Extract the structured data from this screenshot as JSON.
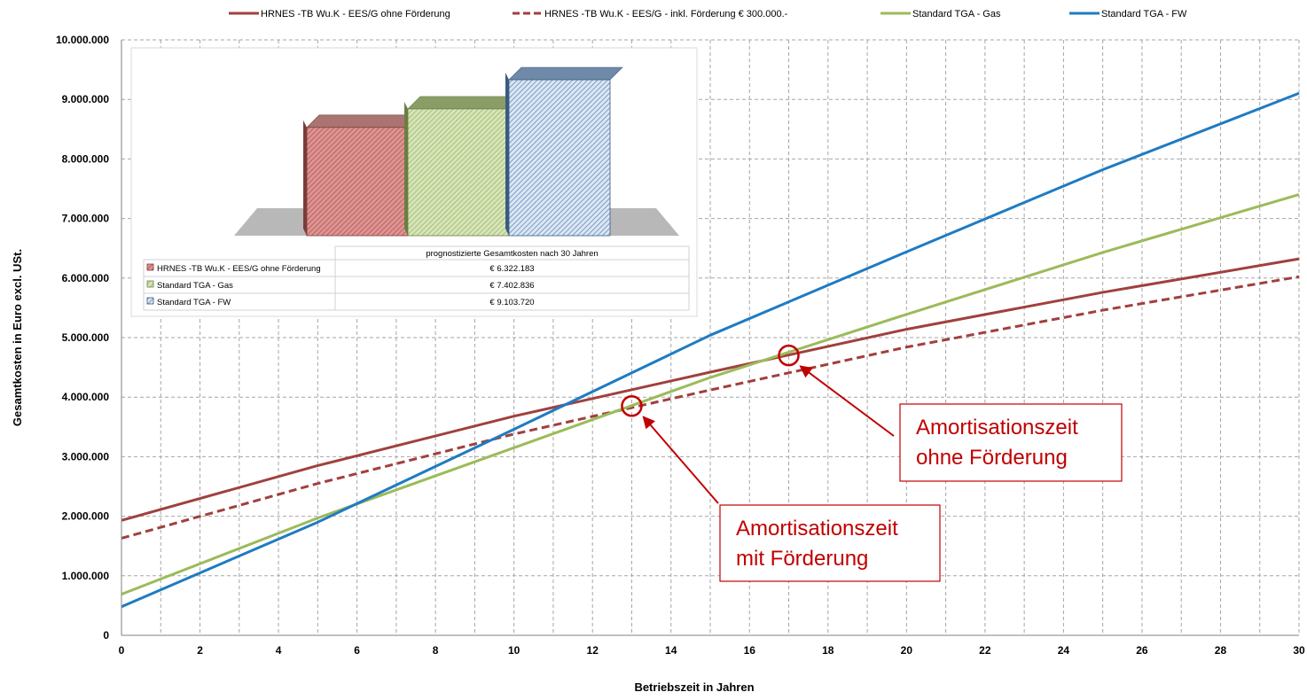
{
  "chart_data": {
    "type": "line",
    "xlabel": "Betriebszeit in Jahren",
    "ylabel": "Gesamtkosten in Euro excl. USt.",
    "xlim": [
      0,
      30
    ],
    "ylim": [
      0,
      10000000
    ],
    "x_ticks": [
      "0",
      "2",
      "4",
      "6",
      "8",
      "10",
      "12",
      "14",
      "16",
      "18",
      "20",
      "22",
      "24",
      "26",
      "28",
      "30"
    ],
    "y_ticks": [
      "0",
      "1.000.000",
      "2.000.000",
      "3.000.000",
      "4.000.000",
      "5.000.000",
      "6.000.000",
      "7.000.000",
      "8.000.000",
      "9.000.000",
      "10.000.000"
    ],
    "grid": true,
    "legend_position": "top",
    "series": [
      {
        "name": "HRNES -TB Wu.K - EES/G ohne Förderung",
        "color": "#a0403e",
        "dashed": false,
        "x": [
          0,
          5,
          10,
          15,
          20,
          25,
          30
        ],
        "y": [
          1930000,
          2850000,
          3680000,
          4420000,
          5140000,
          5760000,
          6322183
        ]
      },
      {
        "name": "HRNES -TB Wu.K - EES/G - inkl. Förderung € 300.000.-",
        "color": "#a0403e",
        "dashed": true,
        "x": [
          0,
          5,
          10,
          15,
          20,
          25,
          30
        ],
        "y": [
          1630000,
          2550000,
          3380000,
          4120000,
          4840000,
          5460000,
          6022183
        ]
      },
      {
        "name": "Standard TGA - Gas",
        "color": "#9bbb59",
        "dashed": false,
        "x": [
          0,
          5,
          10,
          15,
          20,
          25,
          30
        ],
        "y": [
          690000,
          1970000,
          3150000,
          4330000,
          5390000,
          6430000,
          7402836
        ]
      },
      {
        "name": "Standard TGA - FW",
        "color": "#1f7bc2",
        "dashed": false,
        "x": [
          0,
          5,
          10,
          15,
          20,
          25,
          30
        ],
        "y": [
          480000,
          1900000,
          3460000,
          5040000,
          6440000,
          7820000,
          9103720
        ]
      }
    ],
    "annotations": [
      {
        "lines": [
          "Amortisationszeit",
          "ohne Förderung"
        ],
        "target_x": 17,
        "target_y": 4700000
      },
      {
        "lines": [
          "Amortisationszeit",
          "mit Förderung"
        ],
        "target_x": 13,
        "target_y": 3850000
      }
    ],
    "inset": {
      "table_header": "prognostizierte Gesamtkosten nach 30 Jahren",
      "bars": [
        {
          "label": "HRNES -TB Wu.K - EES/G ohne Förderung",
          "value_text": "€ 6.322.183",
          "value": 6322183,
          "color": "#c0504d"
        },
        {
          "label": "Standard TGA - Gas",
          "value_text": "€ 7.402.836",
          "value": 7402836,
          "color": "#9bbb59"
        },
        {
          "label": "Standard TGA - FW",
          "value_text": "€ 9.103.720",
          "value": 9103720,
          "color": "#4f81bd"
        }
      ]
    }
  }
}
